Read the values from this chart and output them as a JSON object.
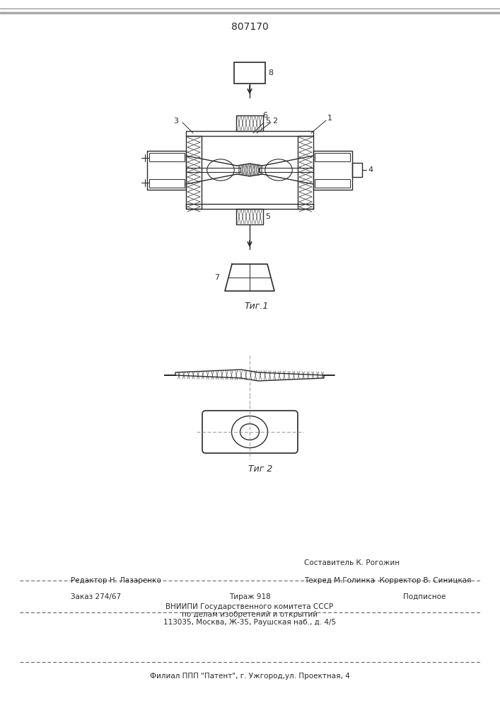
{
  "patent_number": "807170",
  "fig1_caption": "Τиг.1",
  "fig2_caption": "Τиг 2",
  "footer_sestavitel": "Составитель К. Рогожин",
  "footer_redaktor": "Редактор Н. Лазаренко",
  "footer_tehred": "Техред М.Голинка",
  "footer_korrektor": "Корректор В. Синицкая",
  "footer_zakaz": "Заказ 274/67",
  "footer_tirazh": "Тираж 918",
  "footer_podpisnoe": "Подписное",
  "footer_vniip1": "ВНИИПИ Государственного комитета СССР",
  "footer_vniip2": "по делам изобретений и открытий",
  "footer_addr": "113035, Москва, Ж-35, Раушская наб., д. 4/5",
  "footer_filial": "Филиал ППП \"Патент\", г. Ужгород,ул. Проектная, 4",
  "lc": "#2a2a2a",
  "bg": "#ffffff"
}
